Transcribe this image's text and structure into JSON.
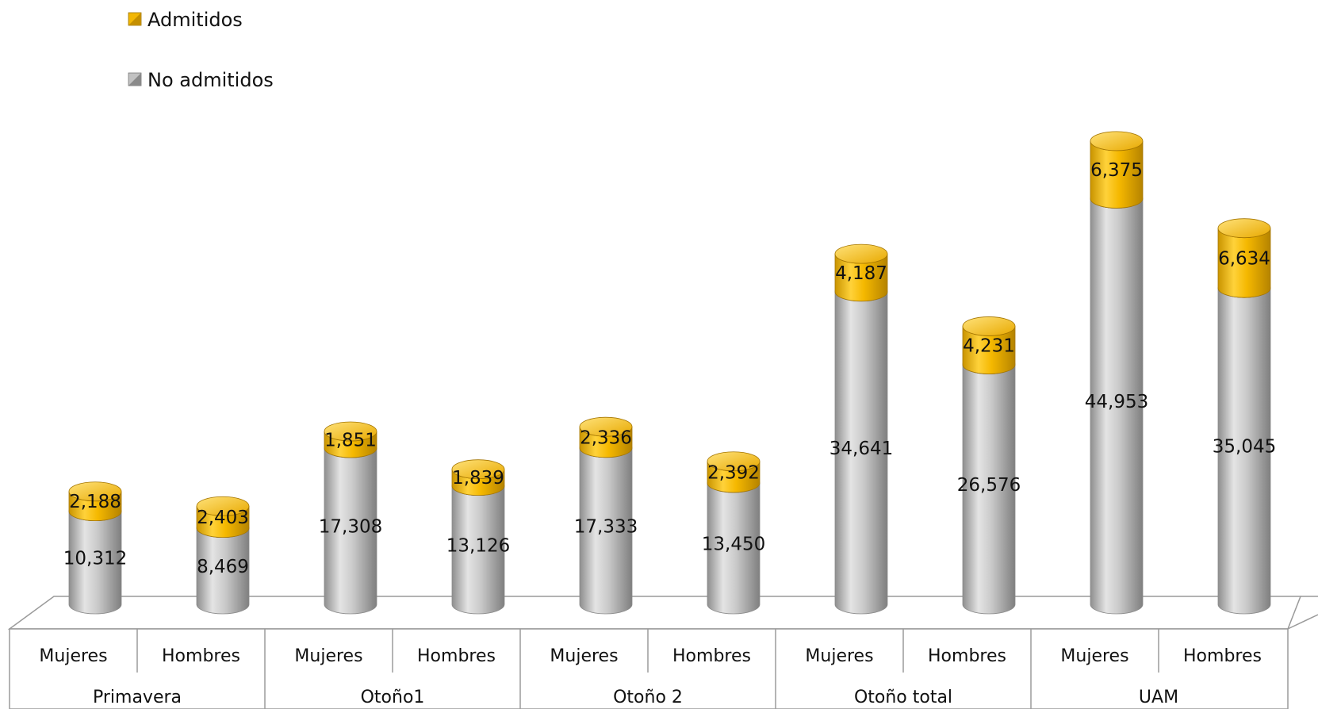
{
  "chart_data": {
    "type": "bar",
    "stacked": true,
    "style": "3d-cylinder",
    "categories": [
      "Mujeres",
      "Hombres",
      "Mujeres",
      "Hombres",
      "Mujeres",
      "Hombres",
      "Mujeres",
      "Hombres",
      "Mujeres",
      "Hombres"
    ],
    "groups": [
      {
        "label": "Primavera",
        "span": 2
      },
      {
        "label": "Otoño1",
        "span": 2
      },
      {
        "label": "Otoño 2",
        "span": 2
      },
      {
        "label": "Otoño total",
        "span": 2
      },
      {
        "label": "UAM",
        "span": 2
      }
    ],
    "series": [
      {
        "name": "No admitidos",
        "color": "#b8b8b8",
        "values": [
          10312,
          8469,
          17308,
          13126,
          17333,
          13450,
          34641,
          26576,
          44953,
          35045
        ],
        "labels": [
          "10,312",
          "8,469",
          "17,308",
          "13,126",
          "17,333",
          "13,450",
          "34,641",
          "26,576",
          "44,953",
          "35,045"
        ]
      },
      {
        "name": "Admitidos",
        "color": "#f2b705",
        "values": [
          2188,
          2403,
          1851,
          1839,
          2336,
          2392,
          4187,
          4231,
          6375,
          6634
        ],
        "labels": [
          "2,188",
          "2,403",
          "1,851",
          "1,839",
          "2,336",
          "2,392",
          "4,187",
          "4,231",
          "6,375",
          "6,634"
        ]
      }
    ],
    "legend": {
      "placement": "top-left",
      "order": [
        "Admitidos",
        "No admitidos"
      ]
    },
    "grid": false
  }
}
